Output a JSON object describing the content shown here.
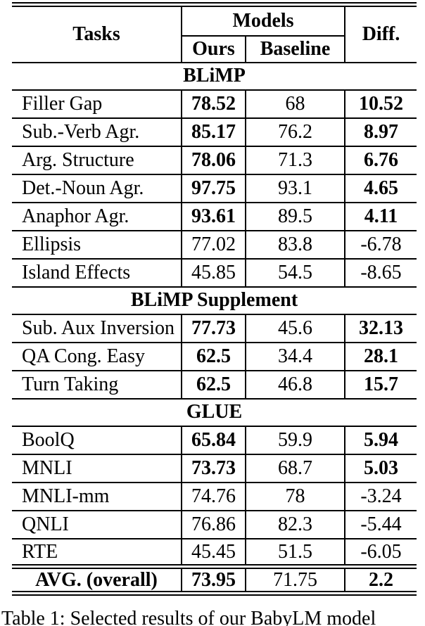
{
  "colors": {
    "text": "#000000",
    "background": "#ffffff",
    "rule": "#000000"
  },
  "table": {
    "header": {
      "tasks": "Tasks",
      "models": "Models",
      "ours": "Ours",
      "baseline": "Baseline",
      "diff": "Diff."
    },
    "sections": [
      {
        "title": "BLiMP",
        "rows": [
          {
            "task": "Filler Gap",
            "ours": "78.52",
            "baseline": "68",
            "diff": "10.52"
          },
          {
            "task": "Sub.-Verb Agr.",
            "ours": "85.17",
            "baseline": "76.2",
            "diff": "8.97"
          },
          {
            "task": "Arg. Structure",
            "ours": "78.06",
            "baseline": "71.3",
            "diff": "6.76"
          },
          {
            "task": "Det.-Noun Agr.",
            "ours": "97.75",
            "baseline": "93.1",
            "diff": "4.65"
          },
          {
            "task": "Anaphor Agr.",
            "ours": "93.61",
            "baseline": "89.5",
            "diff": "4.11"
          },
          {
            "task": "Ellipsis",
            "ours": "77.02",
            "baseline": "83.8",
            "diff": "-6.78"
          },
          {
            "task": "Island Effects",
            "ours": "45.85",
            "baseline": "54.5",
            "diff": "-8.65"
          }
        ]
      },
      {
        "title": "BLiMP Supplement",
        "rows": [
          {
            "task": "Sub. Aux Inversion",
            "ours": "77.73",
            "baseline": "45.6",
            "diff": "32.13"
          },
          {
            "task": "QA Cong. Easy",
            "ours": "62.5",
            "baseline": "34.4",
            "diff": "28.1"
          },
          {
            "task": "Turn Taking",
            "ours": "62.5",
            "baseline": "46.8",
            "diff": "15.7"
          }
        ]
      },
      {
        "title": "GLUE",
        "rows": [
          {
            "task": "BoolQ",
            "ours": "65.84",
            "baseline": "59.9",
            "diff": "5.94"
          },
          {
            "task": "MNLI",
            "ours": "73.73",
            "baseline": "68.7",
            "diff": "5.03"
          },
          {
            "task": "MNLI-mm",
            "ours": "74.76",
            "baseline": "78",
            "diff": "-3.24"
          },
          {
            "task": "QNLI",
            "ours": "76.86",
            "baseline": "82.3",
            "diff": "-5.44"
          },
          {
            "task": "RTE",
            "ours": "45.45",
            "baseline": "51.5",
            "diff": "-6.05"
          }
        ]
      }
    ],
    "footer": {
      "task": "AVG. (overall)",
      "ours": "73.95",
      "baseline": "71.75",
      "diff": "2.2"
    }
  },
  "caption": "Table 1: Selected results of our BabyLM model"
}
